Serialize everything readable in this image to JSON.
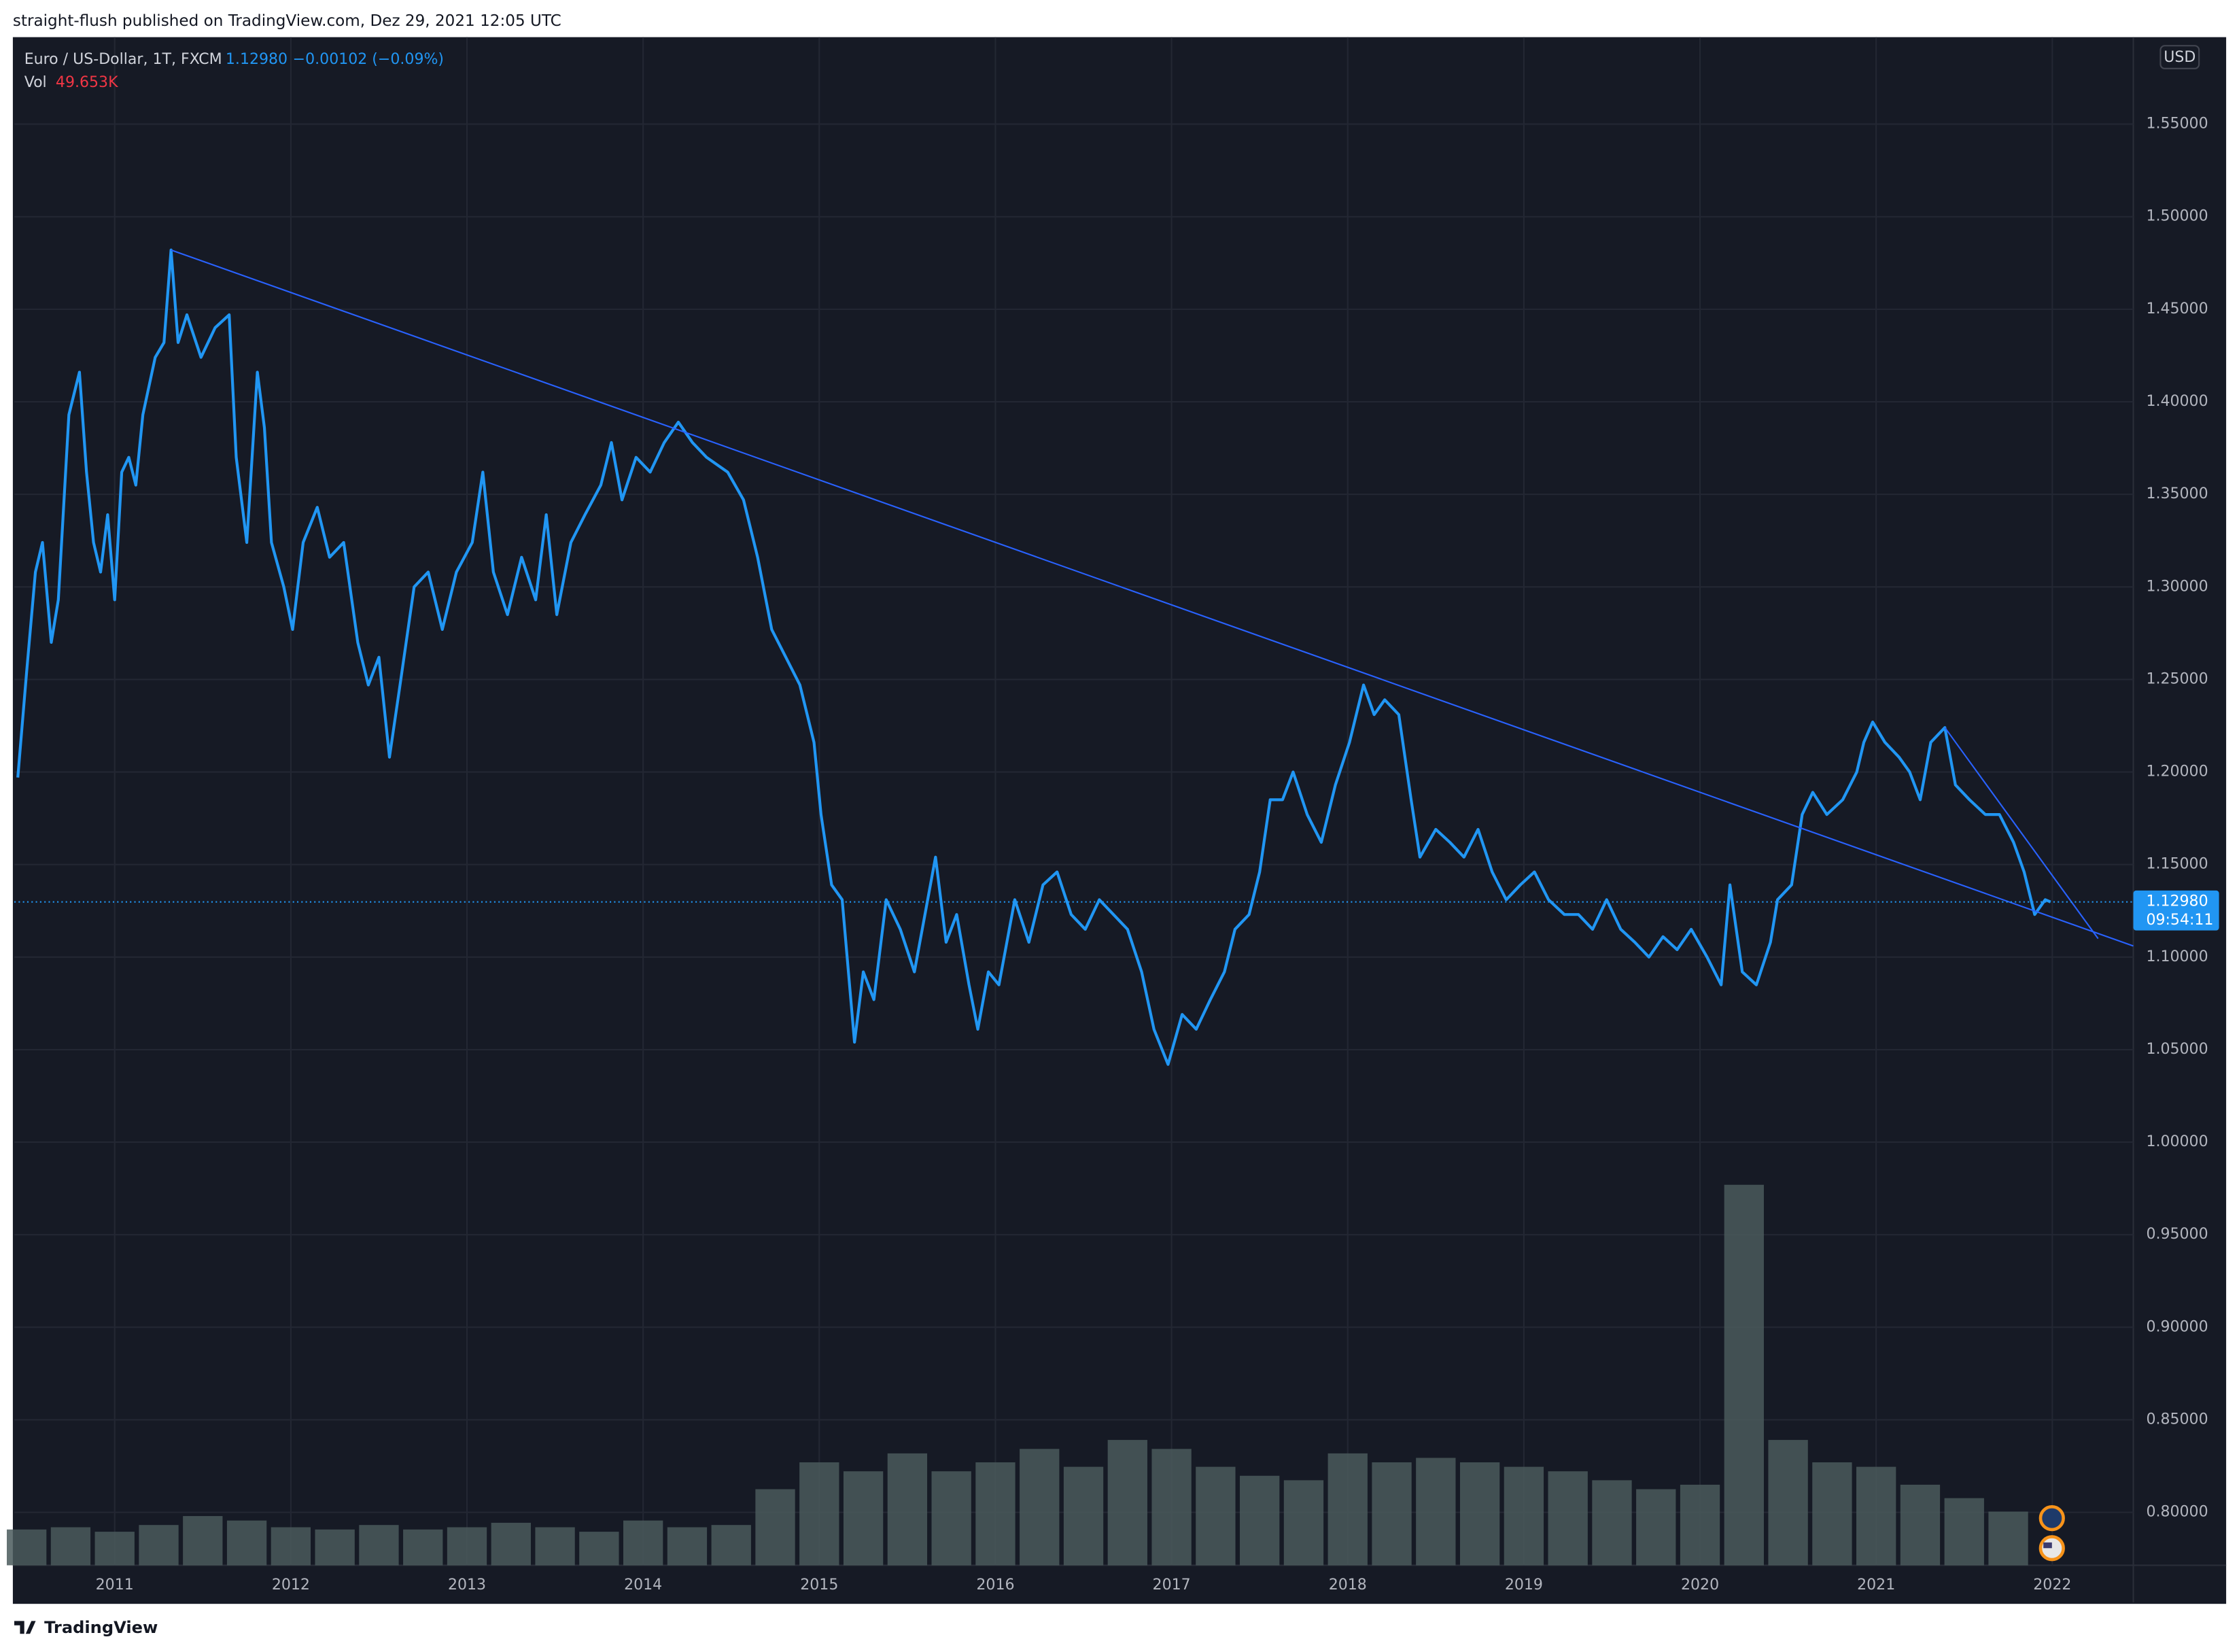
{
  "header": "straight-flush published on TradingView.com, Dez 29, 2021 12:05 UTC",
  "footer": "TradingView",
  "chart_data": {
    "type": "line",
    "currency": "USD",
    "x": [
      2010.45,
      2010.5,
      2010.55,
      2010.59,
      2010.64,
      2010.68,
      2010.74,
      2010.8,
      2010.84,
      2010.88,
      2010.92,
      2010.96,
      2011.0,
      2011.04,
      2011.08,
      2011.12,
      2011.16,
      2011.23,
      2011.28,
      2011.32,
      2011.36,
      2011.41,
      2011.49,
      2011.57,
      2011.65,
      2011.69,
      2011.75,
      2011.81,
      2011.85,
      2011.89,
      2011.96,
      2012.01,
      2012.07,
      2012.15,
      2012.22,
      2012.3,
      2012.38,
      2012.44,
      2012.5,
      2012.56,
      2012.62,
      2012.7,
      2012.78,
      2012.86,
      2012.94,
      2013.03,
      2013.09,
      2013.15,
      2013.23,
      2013.31,
      2013.39,
      2013.45,
      2013.51,
      2013.59,
      2013.67,
      2013.76,
      2013.82,
      2013.88,
      2013.96,
      2014.04,
      2014.12,
      2014.2,
      2014.28,
      2014.36,
      2014.48,
      2014.57,
      2014.65,
      2014.73,
      2014.81,
      2014.89,
      2014.97,
      2015.01,
      2015.07,
      2015.13,
      2015.2,
      2015.25,
      2015.31,
      2015.38,
      2015.46,
      2015.54,
      2015.6,
      2015.66,
      2015.72,
      2015.78,
      2015.85,
      2015.9,
      2015.96,
      2016.02,
      2016.11,
      2016.19,
      2016.27,
      2016.35,
      2016.43,
      2016.51,
      2016.59,
      2016.67,
      2016.75,
      2016.83,
      2016.9,
      2016.98,
      2017.06,
      2017.14,
      2017.22,
      2017.3,
      2017.36,
      2017.44,
      2017.5,
      2017.56,
      2017.63,
      2017.69,
      2017.77,
      2017.85,
      2017.93,
      2018.01,
      2018.09,
      2018.15,
      2018.21,
      2018.29,
      2018.36,
      2018.41,
      2018.5,
      2018.58,
      2018.66,
      2018.74,
      2018.82,
      2018.9,
      2018.98,
      2019.06,
      2019.14,
      2019.23,
      2019.31,
      2019.39,
      2019.47,
      2019.55,
      2019.63,
      2019.71,
      2019.79,
      2019.87,
      2019.95,
      2020.04,
      2020.12,
      2020.17,
      2020.24,
      2020.32,
      2020.4,
      2020.44,
      2020.52,
      2020.58,
      2020.64,
      2020.72,
      2020.81,
      2020.89,
      2020.93,
      2020.98,
      2021.05,
      2021.13,
      2021.19,
      2021.25,
      2021.31,
      2021.39,
      2021.45,
      2021.53,
      2021.62,
      2021.7,
      2021.78,
      2021.84,
      2021.9,
      2021.96,
      2021.99
    ],
    "series": [
      {
        "name": "Euro / US-Dollar, 1T, FXCM",
        "color": "#2196f3",
        "values": [
          1.197,
          1.254,
          1.308,
          1.324,
          1.27,
          1.293,
          1.393,
          1.416,
          1.362,
          1.324,
          1.308,
          1.339,
          1.293,
          1.362,
          1.37,
          1.355,
          1.393,
          1.424,
          1.432,
          1.482,
          1.432,
          1.447,
          1.424,
          1.44,
          1.447,
          1.37,
          1.324,
          1.416,
          1.386,
          1.324,
          1.3,
          1.277,
          1.324,
          1.343,
          1.316,
          1.324,
          1.27,
          1.247,
          1.262,
          1.208,
          1.247,
          1.3,
          1.308,
          1.277,
          1.308,
          1.324,
          1.362,
          1.308,
          1.285,
          1.316,
          1.293,
          1.339,
          1.285,
          1.324,
          1.339,
          1.355,
          1.378,
          1.347,
          1.37,
          1.362,
          1.378,
          1.389,
          1.378,
          1.37,
          1.362,
          1.347,
          1.316,
          1.277,
          1.262,
          1.247,
          1.216,
          1.177,
          1.139,
          1.131,
          1.054,
          1.092,
          1.077,
          1.131,
          1.115,
          1.092,
          1.123,
          1.154,
          1.108,
          1.123,
          1.085,
          1.061,
          1.092,
          1.085,
          1.131,
          1.108,
          1.139,
          1.146,
          1.123,
          1.115,
          1.131,
          1.123,
          1.115,
          1.092,
          1.061,
          1.042,
          1.069,
          1.061,
          1.077,
          1.092,
          1.115,
          1.123,
          1.146,
          1.185,
          1.185,
          1.2,
          1.177,
          1.162,
          1.193,
          1.216,
          1.247,
          1.231,
          1.239,
          1.231,
          1.185,
          1.154,
          1.169,
          1.162,
          1.154,
          1.169,
          1.146,
          1.131,
          1.139,
          1.146,
          1.131,
          1.123,
          1.123,
          1.115,
          1.131,
          1.115,
          1.108,
          1.1,
          1.111,
          1.104,
          1.115,
          1.1,
          1.085,
          1.139,
          1.092,
          1.085,
          1.108,
          1.131,
          1.139,
          1.177,
          1.189,
          1.177,
          1.185,
          1.2,
          1.216,
          1.227,
          1.216,
          1.208,
          1.2,
          1.185,
          1.216,
          1.224,
          1.193,
          1.185,
          1.177,
          1.177,
          1.162,
          1.146,
          1.123,
          1.131,
          1.1298
        ]
      }
    ],
    "last_price": {
      "value": 1.1298,
      "label": "1.12980"
    },
    "change_text": "−0.00102 (−0.09%)",
    "countdown": "09:54:11",
    "trend_lines": [
      {
        "color": "#2962ff",
        "x": [
          2011.32,
          2022.46
        ],
        "values": [
          1.482,
          1.106
        ]
      },
      {
        "color": "#2962ff",
        "x": [
          2021.39,
          2022.26
        ],
        "values": [
          1.224,
          1.11
        ]
      }
    ],
    "volume": {
      "name": "Vol",
      "color": "#4a5a5c",
      "ylim": [
        0,
        850
      ],
      "last": {
        "value": 49.653,
        "label": "49.653K"
      },
      "x": [
        2010.5,
        2010.75,
        2011,
        2011.25,
        2011.5,
        2011.75,
        2012,
        2012.25,
        2012.5,
        2012.75,
        2013,
        2013.25,
        2013.5,
        2013.75,
        2014,
        2014.25,
        2014.5,
        2014.75,
        2015,
        2015.25,
        2015.5,
        2015.75,
        2016,
        2016.25,
        2016.5,
        2016.75,
        2017,
        2017.25,
        2017.5,
        2017.75,
        2018,
        2018.25,
        2018.5,
        2018.75,
        2019,
        2019.25,
        2019.5,
        2019.75,
        2020,
        2020.25,
        2020.5,
        2020.75,
        2021,
        2021.25,
        2021.5,
        2021.75
      ],
      "values": [
        80,
        85,
        75,
        90,
        110,
        100,
        85,
        80,
        90,
        80,
        85,
        95,
        85,
        75,
        100,
        85,
        90,
        170,
        230,
        210,
        250,
        210,
        230,
        260,
        220,
        280,
        260,
        220,
        200,
        190,
        250,
        230,
        240,
        230,
        220,
        210,
        190,
        170,
        180,
        850,
        280,
        230,
        220,
        180,
        150,
        120
      ]
    },
    "xlim": [
      2010.43,
      2022.46
    ],
    "xticks": [
      2011,
      2012,
      2013,
      2014,
      2015,
      2016,
      2017,
      2018,
      2019,
      2020,
      2021,
      2022
    ],
    "ylim": [
      0.7714,
      1.597
    ],
    "yticks": [
      {
        "value": 0.8,
        "label": "0.80000"
      },
      {
        "value": 0.85,
        "label": "0.85000"
      },
      {
        "value": 0.9,
        "label": "0.90000"
      },
      {
        "value": 0.95,
        "label": "0.95000"
      },
      {
        "value": 1.0,
        "label": "1.00000"
      },
      {
        "value": 1.05,
        "label": "1.05000"
      },
      {
        "value": 1.1,
        "label": "1.10000"
      },
      {
        "value": 1.15,
        "label": "1.15000"
      },
      {
        "value": 1.2,
        "label": "1.20000"
      },
      {
        "value": 1.25,
        "label": "1.25000"
      },
      {
        "value": 1.3,
        "label": "1.30000"
      },
      {
        "value": 1.35,
        "label": "1.35000"
      },
      {
        "value": 1.4,
        "label": "1.40000"
      },
      {
        "value": 1.45,
        "label": "1.45000"
      },
      {
        "value": 1.5,
        "label": "1.50000"
      },
      {
        "value": 1.55,
        "label": "1.55000"
      }
    ],
    "grid": true
  }
}
